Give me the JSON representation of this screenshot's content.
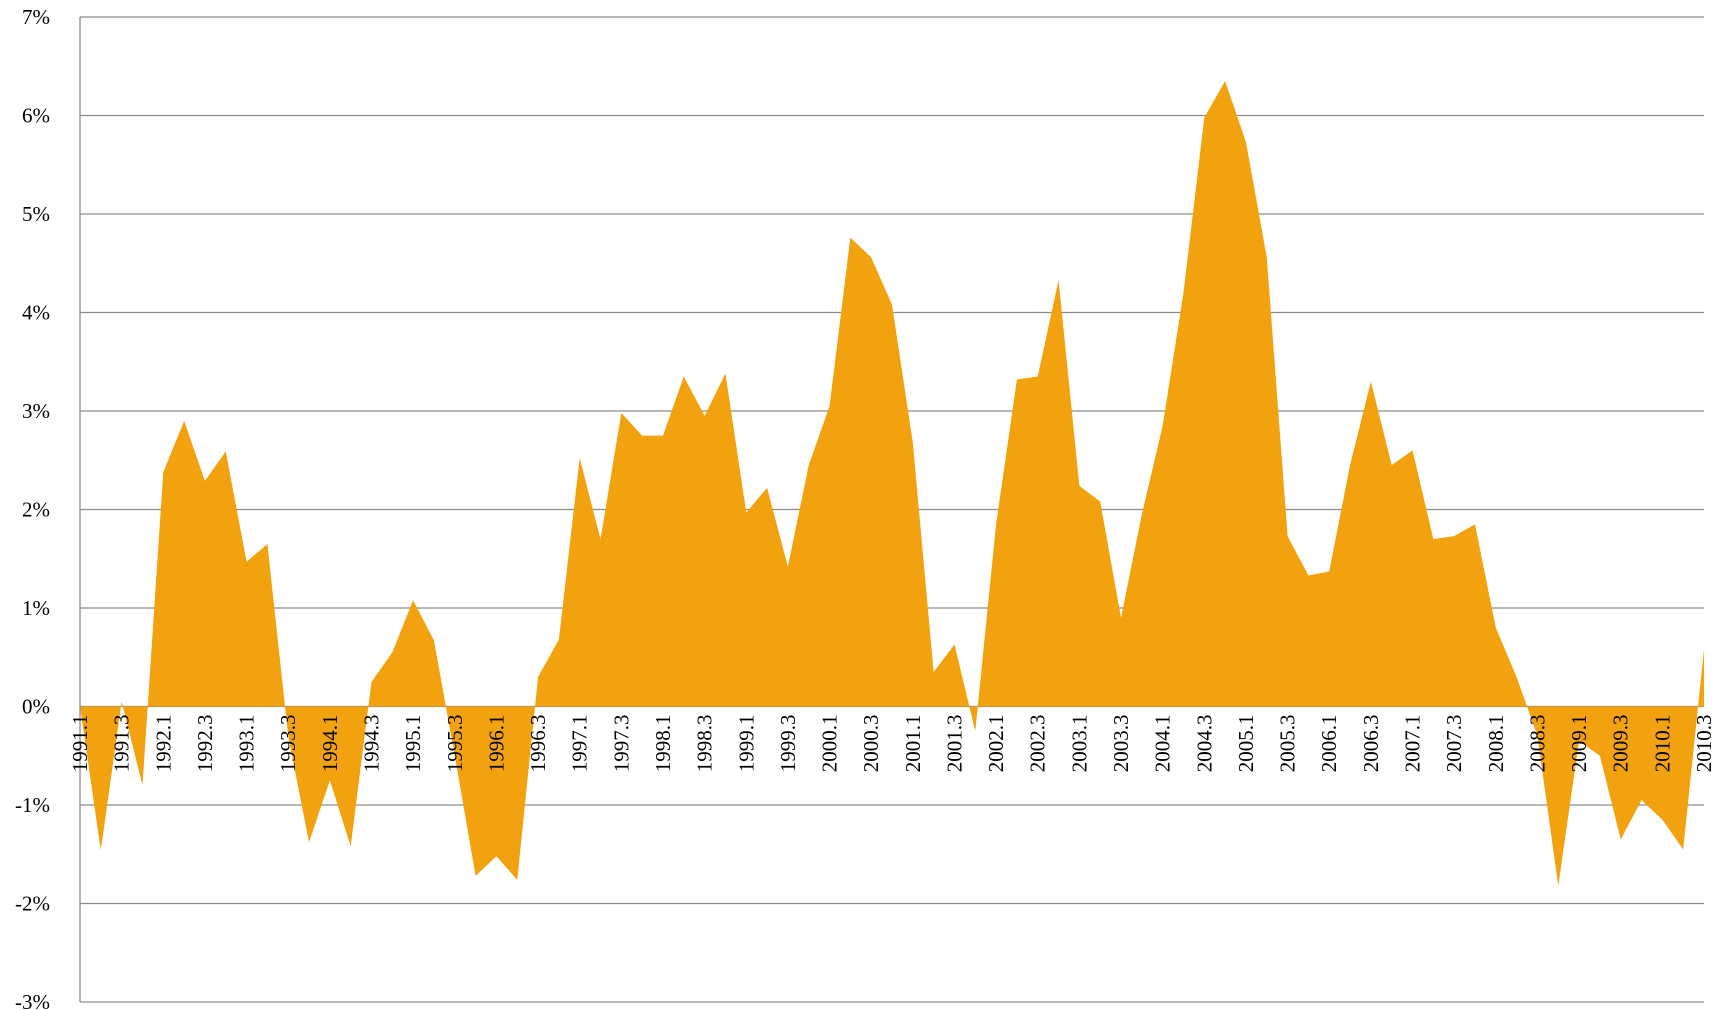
{
  "chart_data": {
    "type": "area",
    "categories": [
      "1991.1",
      null,
      "1991.3",
      null,
      "1992.1",
      null,
      "1992.3",
      null,
      "1993.1",
      null,
      "1993.3",
      null,
      "1994.1",
      null,
      "1994.3",
      null,
      "1995.1",
      null,
      "1995.3",
      null,
      "1996.1",
      null,
      "1996.3",
      null,
      "1997.1",
      null,
      "1997.3",
      null,
      "1998.1",
      null,
      "1998.3",
      null,
      "1999.1",
      null,
      "1999.3",
      null,
      "2000.1",
      null,
      "2000.3",
      null,
      "2001.1",
      null,
      "2001.3",
      null,
      "2002.1",
      null,
      "2002.3",
      null,
      "2003.1",
      null,
      "2003.3",
      null,
      "2004.1",
      null,
      "2004.3",
      null,
      "2005.1",
      null,
      "2005.3",
      null,
      "2006.1",
      null,
      "2006.3",
      null,
      "2007.1",
      null,
      "2007.3",
      null,
      "2008.1",
      null,
      "2008.3",
      null,
      "2009.1",
      null,
      "2009.3",
      null,
      "2010.1",
      null,
      "2010.3"
    ],
    "values": [
      0,
      -1.46,
      0.05,
      -0.8,
      2.38,
      2.9,
      2.29,
      2.59,
      1.47,
      1.65,
      -0.3,
      -1.38,
      -0.75,
      -1.42,
      0.25,
      0.55,
      1.08,
      0.67,
      -0.5,
      -1.72,
      -1.52,
      -1.76,
      0.3,
      0.68,
      2.52,
      1.7,
      2.98,
      2.75,
      2.75,
      3.35,
      2.95,
      3.38,
      1.97,
      2.22,
      1.42,
      2.45,
      3.05,
      4.76,
      4.56,
      4.08,
      2.68,
      0.35,
      0.63,
      -0.25,
      1.85,
      3.32,
      3.35,
      4.33,
      2.24,
      2.08,
      0.9,
      1.95,
      2.85,
      4.2,
      5.98,
      6.35,
      5.73,
      4.56,
      1.73,
      1.33,
      1.37,
      2.45,
      3.3,
      2.45,
      2.6,
      1.7,
      1.73,
      1.85,
      0.8,
      0.3,
      -0.3,
      -1.82,
      -0.35,
      -0.5,
      -1.35,
      -0.95,
      -1.15,
      -1.45,
      0.58
    ],
    "color": "#f3a20f",
    "ylim": [
      -3,
      7
    ],
    "yticks": [
      {
        "value": -3,
        "label": "-3%"
      },
      {
        "value": -2,
        "label": "-2%"
      },
      {
        "value": -1,
        "label": "-1%"
      },
      {
        "value": 0,
        "label": "0%"
      },
      {
        "value": 1,
        "label": "1%"
      },
      {
        "value": 2,
        "label": "2%"
      },
      {
        "value": 3,
        "label": "3%"
      },
      {
        "value": 4,
        "label": "4%"
      },
      {
        "value": 5,
        "label": "5%"
      },
      {
        "value": 6,
        "label": "6%"
      },
      {
        "value": 7,
        "label": "7%"
      }
    ],
    "grid": true
  }
}
